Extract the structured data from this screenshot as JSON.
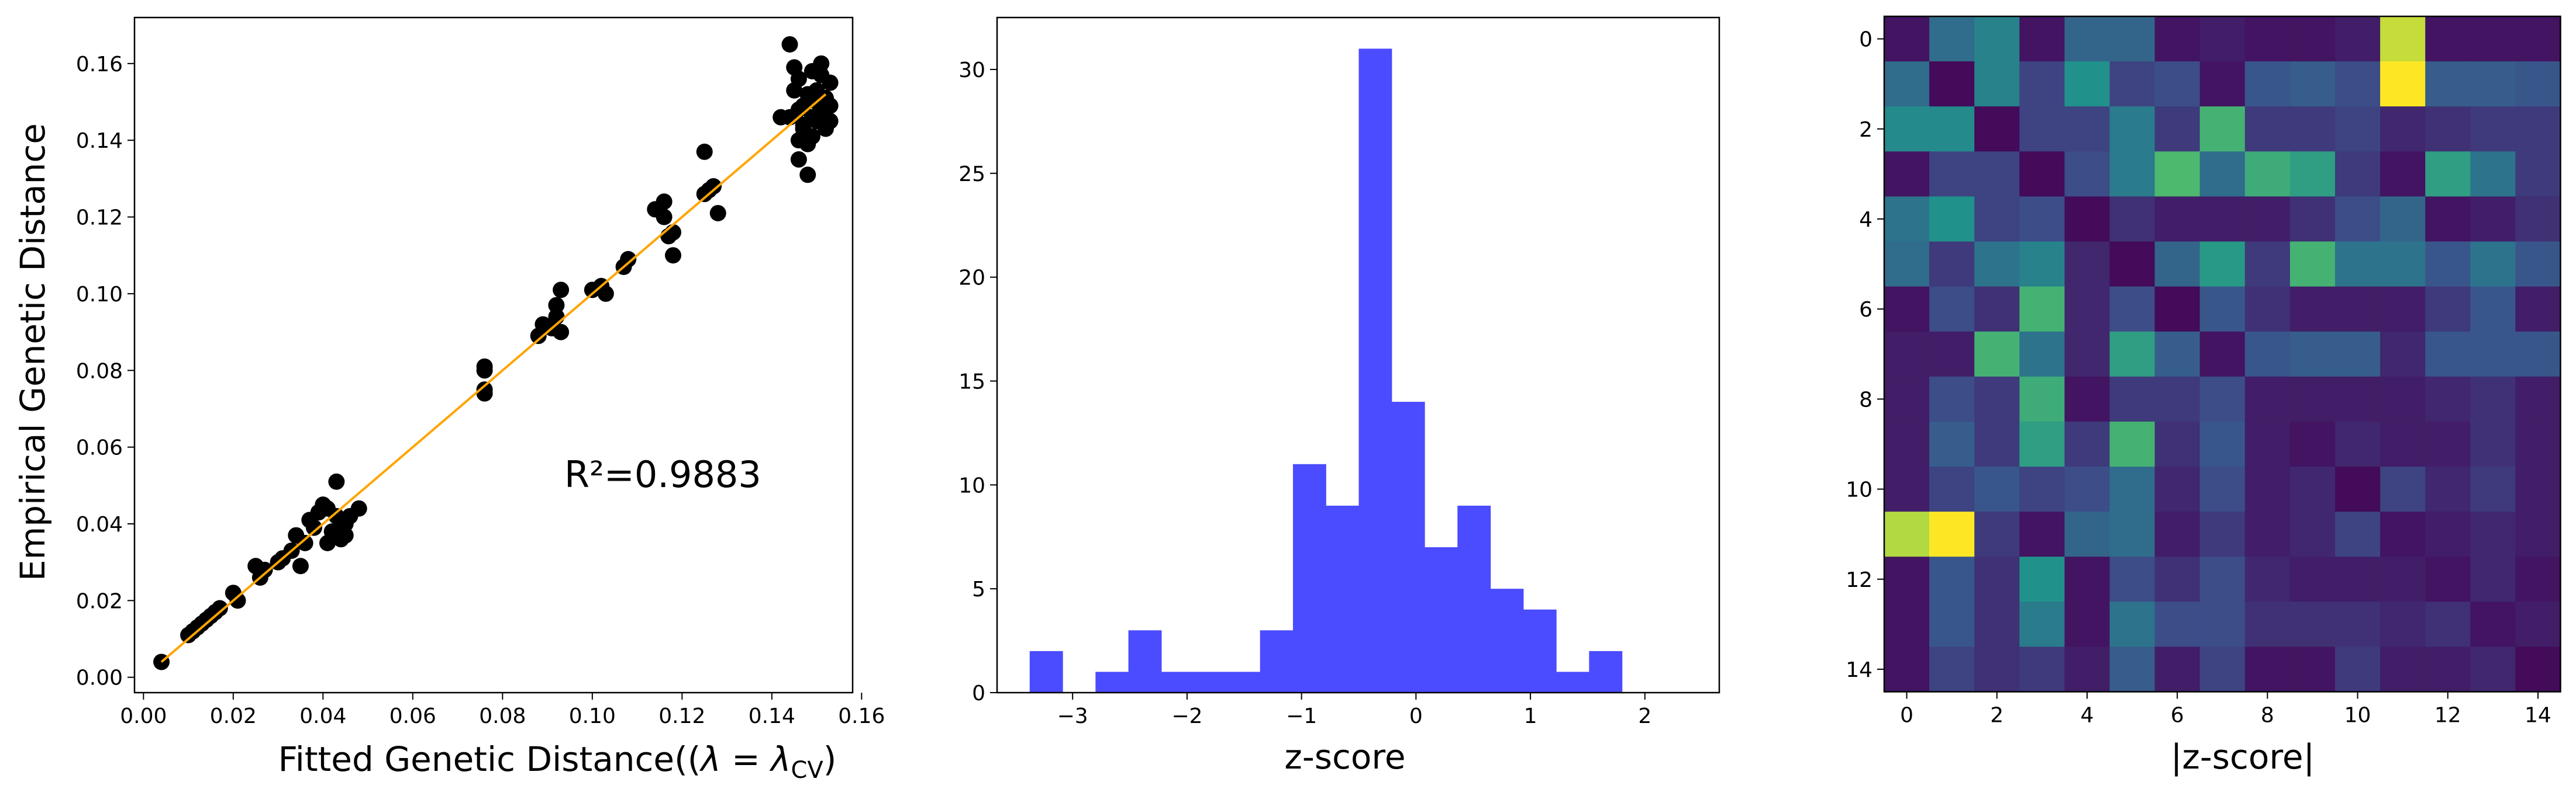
{
  "chart_data": [
    {
      "type": "scatter",
      "xlabel_prefix": "Fitted Genetic Distance((",
      "xlabel_math": "λ = λ",
      "xlabel_sub": "CV",
      "xlabel_suffix": ")",
      "ylabel": "Empirical Genetic Distance",
      "xlim": [
        -0.002,
        0.158
      ],
      "ylim": [
        -0.004,
        0.172
      ],
      "xticks": [
        0.0,
        0.02,
        0.04,
        0.06,
        0.08,
        0.1,
        0.12,
        0.14,
        0.16
      ],
      "yticks": [
        0.0,
        0.02,
        0.04,
        0.06,
        0.08,
        0.1,
        0.12,
        0.14,
        0.16
      ],
      "tick_format": "%.2f",
      "annotation": "R²=0.9883",
      "point_color": "#000000",
      "fit_line": {
        "color": "#FFA500",
        "x": [
          0.004,
          0.152
        ],
        "y": [
          0.004,
          0.152
        ]
      },
      "points": [
        [
          0.004,
          0.004
        ],
        [
          0.01,
          0.011
        ],
        [
          0.011,
          0.012
        ],
        [
          0.012,
          0.013
        ],
        [
          0.013,
          0.014
        ],
        [
          0.014,
          0.015
        ],
        [
          0.015,
          0.016
        ],
        [
          0.016,
          0.017
        ],
        [
          0.017,
          0.018
        ],
        [
          0.02,
          0.022
        ],
        [
          0.021,
          0.02
        ],
        [
          0.025,
          0.029
        ],
        [
          0.026,
          0.026
        ],
        [
          0.027,
          0.028
        ],
        [
          0.03,
          0.03
        ],
        [
          0.031,
          0.031
        ],
        [
          0.033,
          0.033
        ],
        [
          0.034,
          0.037
        ],
        [
          0.035,
          0.029
        ],
        [
          0.036,
          0.035
        ],
        [
          0.037,
          0.041
        ],
        [
          0.038,
          0.039
        ],
        [
          0.039,
          0.043
        ],
        [
          0.04,
          0.045
        ],
        [
          0.041,
          0.035
        ],
        [
          0.041,
          0.044
        ],
        [
          0.042,
          0.038
        ],
        [
          0.043,
          0.042
        ],
        [
          0.043,
          0.051
        ],
        [
          0.044,
          0.036
        ],
        [
          0.044,
          0.041
        ],
        [
          0.045,
          0.04
        ],
        [
          0.045,
          0.037
        ],
        [
          0.046,
          0.042
        ],
        [
          0.048,
          0.044
        ],
        [
          0.076,
          0.074
        ],
        [
          0.076,
          0.075
        ],
        [
          0.076,
          0.08
        ],
        [
          0.076,
          0.081
        ],
        [
          0.088,
          0.089
        ],
        [
          0.089,
          0.092
        ],
        [
          0.091,
          0.091
        ],
        [
          0.092,
          0.094
        ],
        [
          0.092,
          0.097
        ],
        [
          0.093,
          0.101
        ],
        [
          0.093,
          0.09
        ],
        [
          0.1,
          0.101
        ],
        [
          0.102,
          0.102
        ],
        [
          0.103,
          0.1
        ],
        [
          0.107,
          0.107
        ],
        [
          0.108,
          0.109
        ],
        [
          0.114,
          0.122
        ],
        [
          0.116,
          0.12
        ],
        [
          0.116,
          0.124
        ],
        [
          0.117,
          0.115
        ],
        [
          0.118,
          0.116
        ],
        [
          0.118,
          0.11
        ],
        [
          0.125,
          0.126
        ],
        [
          0.125,
          0.137
        ],
        [
          0.126,
          0.127
        ],
        [
          0.127,
          0.128
        ],
        [
          0.128,
          0.121
        ],
        [
          0.142,
          0.146
        ],
        [
          0.144,
          0.165
        ],
        [
          0.144,
          0.146
        ],
        [
          0.145,
          0.159
        ],
        [
          0.145,
          0.153
        ],
        [
          0.146,
          0.156
        ],
        [
          0.146,
          0.135
        ],
        [
          0.146,
          0.14
        ],
        [
          0.146,
          0.148
        ],
        [
          0.147,
          0.143
        ],
        [
          0.147,
          0.144
        ],
        [
          0.147,
          0.149
        ],
        [
          0.148,
          0.152
        ],
        [
          0.148,
          0.131
        ],
        [
          0.148,
          0.139
        ],
        [
          0.149,
          0.146
        ],
        [
          0.149,
          0.158
        ],
        [
          0.149,
          0.141
        ],
        [
          0.15,
          0.145
        ],
        [
          0.15,
          0.15
        ],
        [
          0.15,
          0.153
        ],
        [
          0.151,
          0.16
        ],
        [
          0.151,
          0.157
        ],
        [
          0.151,
          0.148
        ],
        [
          0.152,
          0.143
        ],
        [
          0.152,
          0.151
        ],
        [
          0.153,
          0.145
        ],
        [
          0.153,
          0.149
        ],
        [
          0.153,
          0.155
        ]
      ]
    },
    {
      "type": "bar",
      "xlabel": "z-score",
      "ylabel": "",
      "color": "#4B4BFF",
      "bins_start": -3.375,
      "bin_width": 0.2875,
      "counts": [
        2,
        0,
        1,
        3,
        1,
        1,
        1,
        3,
        11,
        9,
        31,
        14,
        7,
        9,
        5,
        4,
        1,
        2
      ],
      "xlim": [
        -3.66,
        2.65
      ],
      "ylim": [
        0,
        32.5
      ],
      "xticks": [
        -3,
        -2,
        -1,
        0,
        1,
        2
      ],
      "yticks": [
        0,
        5,
        10,
        15,
        20,
        25,
        30
      ]
    },
    {
      "type": "heatmap",
      "xlabel": "|z-score|",
      "ylabel": "",
      "colormap": "viridis",
      "vmax": 3.4,
      "xticks": [
        0,
        2,
        4,
        6,
        8,
        10,
        12,
        14
      ],
      "yticks": [
        0,
        2,
        4,
        6,
        8,
        10,
        12,
        14
      ],
      "matrix": [
        [
          0.2,
          1.2,
          1.5,
          0.2,
          1.1,
          1.1,
          0.2,
          0.3,
          0.2,
          0.2,
          0.3,
          3.1,
          0.2,
          0.2,
          0.2
        ],
        [
          1.2,
          0.1,
          1.5,
          0.7,
          1.7,
          0.7,
          0.8,
          0.2,
          0.9,
          1.0,
          0.8,
          3.4,
          1.0,
          1.0,
          0.9
        ],
        [
          1.6,
          1.6,
          0.1,
          0.7,
          0.7,
          1.4,
          0.6,
          2.2,
          0.6,
          0.6,
          0.7,
          0.4,
          0.5,
          0.6,
          0.6
        ],
        [
          0.2,
          0.7,
          0.7,
          0.1,
          0.8,
          1.4,
          2.3,
          1.2,
          2.1,
          1.9,
          0.6,
          0.2,
          1.9,
          1.3,
          0.6
        ],
        [
          1.3,
          1.7,
          0.7,
          0.8,
          0.1,
          0.5,
          0.3,
          0.3,
          0.3,
          0.5,
          0.8,
          1.1,
          0.2,
          0.3,
          0.5
        ],
        [
          1.2,
          0.6,
          1.3,
          1.5,
          0.4,
          0.1,
          1.1,
          1.8,
          0.6,
          2.2,
          1.3,
          1.3,
          0.9,
          1.3,
          0.9
        ],
        [
          0.2,
          0.8,
          0.5,
          2.2,
          0.4,
          0.8,
          0.1,
          0.9,
          0.5,
          0.3,
          0.3,
          0.3,
          0.6,
          0.9,
          0.3
        ],
        [
          0.3,
          0.3,
          2.2,
          1.3,
          0.4,
          1.9,
          1.0,
          0.2,
          0.9,
          1.0,
          1.0,
          0.4,
          0.9,
          0.9,
          0.9
        ],
        [
          0.3,
          0.8,
          0.6,
          2.1,
          0.2,
          0.6,
          0.6,
          0.8,
          0.3,
          0.3,
          0.3,
          0.3,
          0.4,
          0.5,
          0.3
        ],
        [
          0.3,
          1.0,
          0.6,
          1.9,
          0.6,
          2.2,
          0.5,
          0.9,
          0.3,
          0.2,
          0.4,
          0.3,
          0.3,
          0.5,
          0.3
        ],
        [
          0.3,
          0.7,
          0.9,
          0.7,
          0.8,
          1.2,
          0.4,
          0.8,
          0.3,
          0.4,
          0.1,
          0.7,
          0.4,
          0.6,
          0.3
        ],
        [
          3.0,
          3.4,
          0.6,
          0.2,
          1.1,
          1.2,
          0.3,
          0.6,
          0.3,
          0.4,
          0.7,
          0.2,
          0.3,
          0.4,
          0.3
        ],
        [
          0.2,
          0.9,
          0.5,
          1.7,
          0.2,
          0.8,
          0.5,
          0.8,
          0.4,
          0.3,
          0.3,
          0.3,
          0.2,
          0.4,
          0.2
        ],
        [
          0.2,
          0.9,
          0.5,
          1.4,
          0.2,
          1.3,
          0.8,
          0.8,
          0.5,
          0.5,
          0.5,
          0.4,
          0.5,
          0.2,
          0.3
        ],
        [
          0.2,
          0.7,
          0.5,
          0.6,
          0.3,
          1.0,
          0.3,
          0.7,
          0.2,
          0.2,
          0.6,
          0.3,
          0.3,
          0.4,
          0.1
        ]
      ]
    }
  ]
}
